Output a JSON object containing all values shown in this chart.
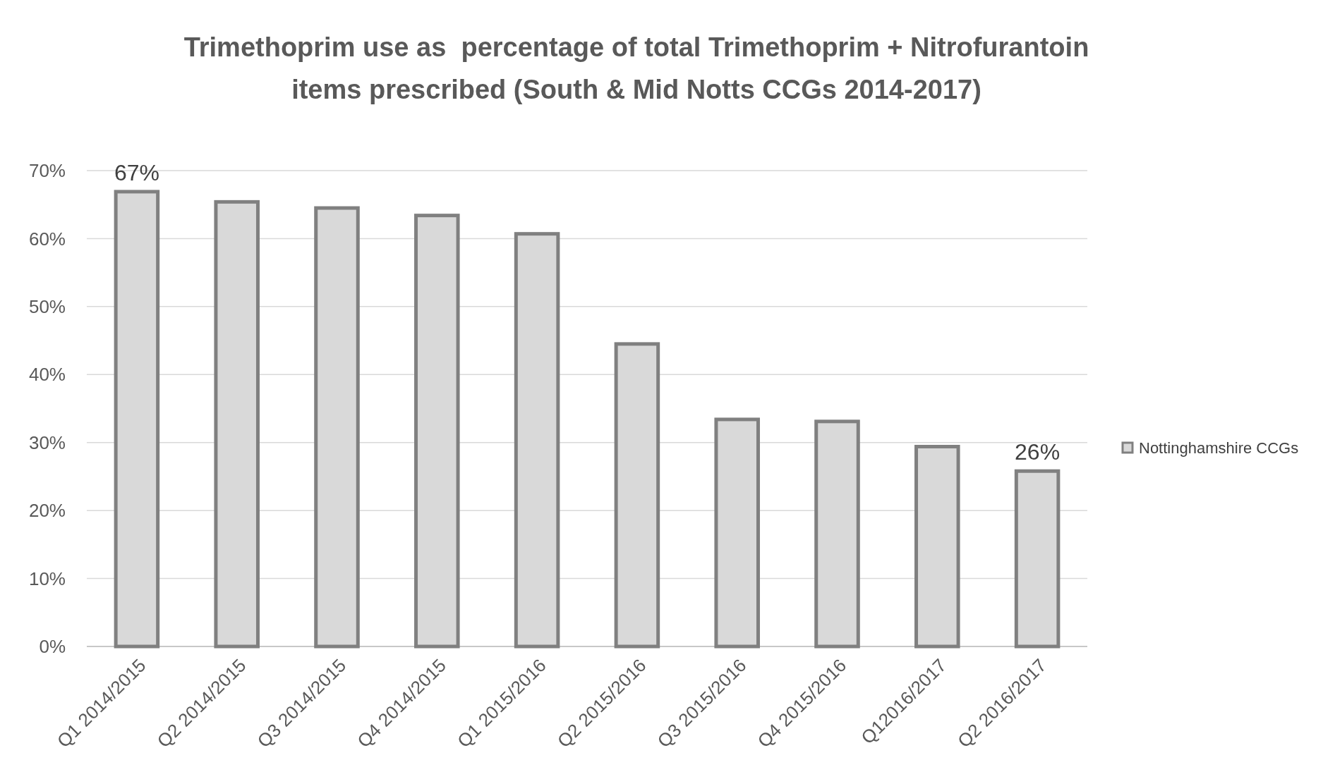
{
  "chart_data": {
    "type": "bar",
    "title": "Trimethoprim use as  percentage of total Trimethoprim + Nitrofurantoin items prescribed (South & Mid Notts CCGs 2014-2017)",
    "categories": [
      "Q1 2014/2015",
      "Q2 2014/2015",
      "Q3 2014/2015",
      "Q4 2014/2015",
      "Q1 2015/2016",
      "Q2 2015/2016",
      "Q3 2015/2016",
      "Q4 2015/2016",
      "Q12016/2017",
      "Q2 2016/2017"
    ],
    "series": [
      {
        "name": "Nottinghamshire CCGs",
        "color": "#d9d9d9",
        "values": [
          66.9,
          65.4,
          64.5,
          63.4,
          60.7,
          44.5,
          33.4,
          33.1,
          29.4,
          25.8
        ],
        "value_labels": [
          "67%",
          null,
          null,
          null,
          null,
          null,
          null,
          null,
          null,
          "26%"
        ]
      }
    ],
    "ylim": [
      0,
      70
    ],
    "yticks": [
      {
        "value": 0,
        "label": "0%"
      },
      {
        "value": 10,
        "label": "10%"
      },
      {
        "value": 20,
        "label": "20%"
      },
      {
        "value": 30,
        "label": "30%"
      },
      {
        "value": 40,
        "label": "40%"
      },
      {
        "value": 50,
        "label": "50%"
      },
      {
        "value": 60,
        "label": "60%"
      },
      {
        "value": 70,
        "label": "70%"
      }
    ],
    "grid": "y",
    "legend": "right"
  }
}
